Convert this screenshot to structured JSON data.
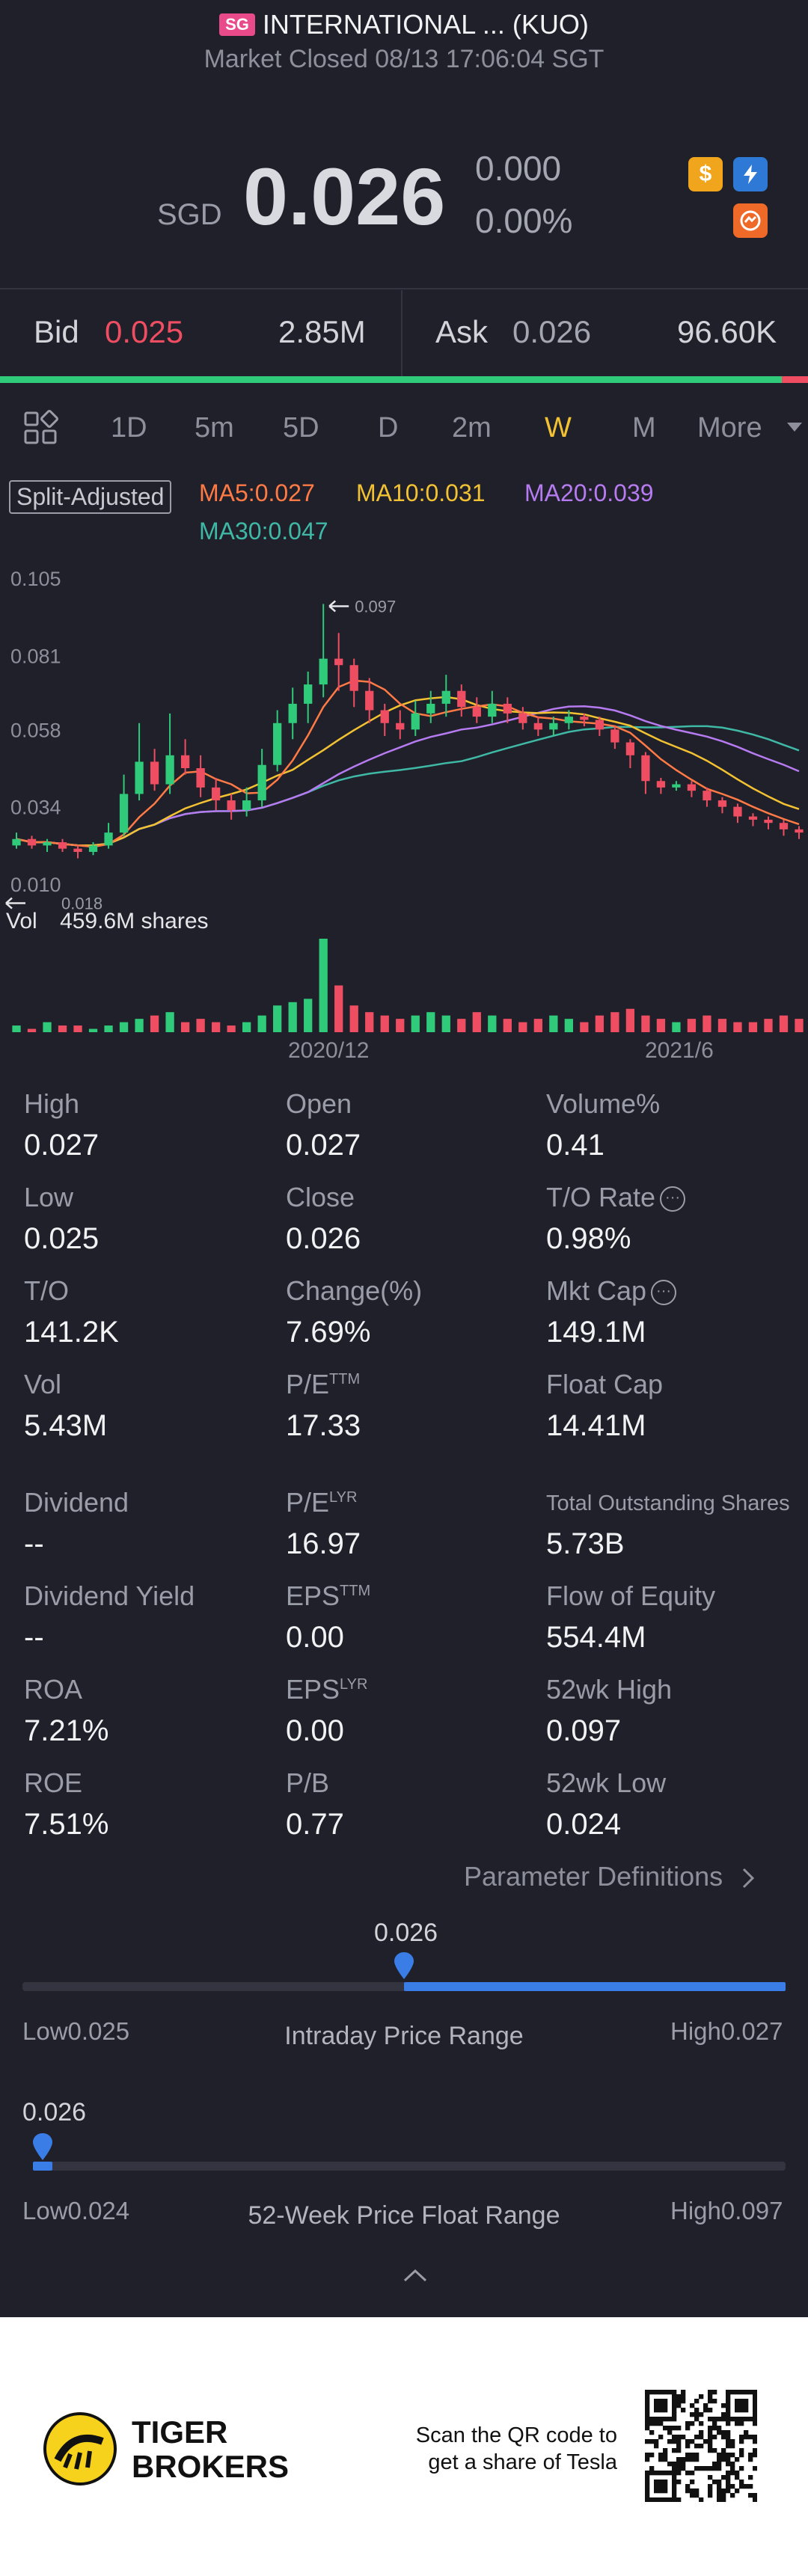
{
  "header": {
    "market_badge": "SG",
    "title": "INTERNATIONAL ... (KUO)",
    "status": "Market Closed 08/13 17:06:04 SGT"
  },
  "quote": {
    "currency": "SGD",
    "price": "0.026",
    "change": "0.000",
    "change_pct": "0.00%"
  },
  "icons": {
    "dollar": "dollar-icon",
    "bolt": "lightning-icon",
    "swap": "swap-icon"
  },
  "book": {
    "bid_label": "Bid",
    "bid_price": "0.025",
    "bid_size": "2.85M",
    "ask_label": "Ask",
    "ask_price": "0.026",
    "ask_size": "96.60K"
  },
  "tabs": [
    "1D",
    "5m",
    "5D",
    "D",
    "2m",
    "W",
    "M",
    "More"
  ],
  "active_tab": "W",
  "indicators": {
    "split": "Split-Adjusted",
    "ma5": "MA5:0.027",
    "ma10": "MA10:0.031",
    "ma20": "MA20:0.039",
    "ma30": "MA30:0.047"
  },
  "chart": {
    "y_ticks": [
      "0.105",
      "0.081",
      "0.058",
      "0.034",
      "0.010"
    ],
    "high_marker": "0.097",
    "low_marker": "0.018",
    "vol_label": "Vol",
    "vol_value": "459.6M shares",
    "x_labels": [
      "2020/12",
      "2021/6"
    ]
  },
  "chart_data": {
    "type": "candlestick",
    "ylim": [
      0.01,
      0.105
    ],
    "y_ticks": [
      0.105,
      0.081,
      0.058,
      0.034,
      0.01
    ],
    "annotations": {
      "high": 0.097,
      "low": 0.018
    },
    "x_labels": [
      "2020/12",
      "2021/6"
    ],
    "candles": [
      [
        0.022,
        0.024,
        0.021,
        0.026
      ],
      [
        0.024,
        0.022,
        0.021,
        0.025
      ],
      [
        0.022,
        0.023,
        0.02,
        0.024
      ],
      [
        0.023,
        0.021,
        0.02,
        0.024
      ],
      [
        0.021,
        0.02,
        0.018,
        0.022
      ],
      [
        0.02,
        0.022,
        0.019,
        0.023
      ],
      [
        0.022,
        0.026,
        0.021,
        0.029
      ],
      [
        0.026,
        0.038,
        0.025,
        0.044
      ],
      [
        0.038,
        0.048,
        0.036,
        0.06
      ],
      [
        0.048,
        0.041,
        0.039,
        0.052
      ],
      [
        0.041,
        0.05,
        0.038,
        0.063
      ],
      [
        0.05,
        0.046,
        0.044,
        0.055
      ],
      [
        0.046,
        0.04,
        0.037,
        0.05
      ],
      [
        0.04,
        0.036,
        0.033,
        0.043
      ],
      [
        0.036,
        0.033,
        0.03,
        0.038
      ],
      [
        0.033,
        0.036,
        0.031,
        0.04
      ],
      [
        0.036,
        0.047,
        0.034,
        0.052
      ],
      [
        0.047,
        0.06,
        0.045,
        0.064
      ],
      [
        0.06,
        0.066,
        0.055,
        0.071
      ],
      [
        0.066,
        0.072,
        0.06,
        0.076
      ],
      [
        0.072,
        0.08,
        0.068,
        0.097
      ],
      [
        0.08,
        0.078,
        0.07,
        0.088
      ],
      [
        0.078,
        0.07,
        0.065,
        0.08
      ],
      [
        0.07,
        0.064,
        0.06,
        0.074
      ],
      [
        0.064,
        0.06,
        0.056,
        0.066
      ],
      [
        0.06,
        0.058,
        0.055,
        0.064
      ],
      [
        0.058,
        0.063,
        0.056,
        0.067
      ],
      [
        0.063,
        0.066,
        0.06,
        0.07
      ],
      [
        0.066,
        0.07,
        0.062,
        0.075
      ],
      [
        0.07,
        0.065,
        0.062,
        0.072
      ],
      [
        0.065,
        0.062,
        0.06,
        0.068
      ],
      [
        0.062,
        0.066,
        0.06,
        0.07
      ],
      [
        0.066,
        0.063,
        0.06,
        0.068
      ],
      [
        0.063,
        0.06,
        0.058,
        0.065
      ],
      [
        0.06,
        0.058,
        0.056,
        0.062
      ],
      [
        0.058,
        0.06,
        0.056,
        0.062
      ],
      [
        0.06,
        0.062,
        0.058,
        0.064
      ],
      [
        0.062,
        0.061,
        0.059,
        0.063
      ],
      [
        0.061,
        0.058,
        0.056,
        0.062
      ],
      [
        0.058,
        0.054,
        0.052,
        0.059
      ],
      [
        0.054,
        0.05,
        0.046,
        0.055
      ],
      [
        0.05,
        0.042,
        0.038,
        0.051
      ],
      [
        0.042,
        0.04,
        0.038,
        0.043
      ],
      [
        0.04,
        0.041,
        0.039,
        0.042
      ],
      [
        0.041,
        0.039,
        0.037,
        0.042
      ],
      [
        0.039,
        0.036,
        0.034,
        0.04
      ],
      [
        0.036,
        0.034,
        0.032,
        0.037
      ],
      [
        0.034,
        0.031,
        0.029,
        0.035
      ],
      [
        0.031,
        0.03,
        0.028,
        0.032
      ],
      [
        0.03,
        0.029,
        0.027,
        0.031
      ],
      [
        0.029,
        0.027,
        0.025,
        0.03
      ],
      [
        0.027,
        0.026,
        0.024,
        0.028
      ]
    ],
    "volume": [
      2,
      1,
      3,
      2,
      2,
      1,
      2,
      3,
      4,
      5,
      6,
      3,
      4,
      3,
      2,
      3,
      5,
      8,
      9,
      10,
      28,
      14,
      8,
      6,
      5,
      4,
      5,
      6,
      5,
      4,
      6,
      5,
      4,
      3,
      4,
      5,
      4,
      3,
      5,
      6,
      7,
      5,
      4,
      3,
      4,
      5,
      4,
      3,
      3,
      4,
      5,
      4
    ]
  },
  "stats": [
    {
      "label": "High",
      "value": "0.027"
    },
    {
      "label": "Open",
      "value": "0.027"
    },
    {
      "label": "Volume%",
      "value": "0.41"
    },
    {
      "label": "Low",
      "value": "0.025"
    },
    {
      "label": "Close",
      "value": "0.026"
    },
    {
      "label": "T/O Rate",
      "value": "0.98%"
    },
    {
      "label": "T/O",
      "value": "141.2K"
    },
    {
      "label": "Change(%)",
      "value": "7.69%"
    },
    {
      "label": "Mkt Cap",
      "value": "149.1M"
    },
    {
      "label": "Vol",
      "value": "5.43M"
    },
    {
      "label": "P/E",
      "sup": "TTM",
      "value": "17.33"
    },
    {
      "label": "Float Cap",
      "value": "14.41M"
    },
    {
      "label": "Dividend",
      "value": "--"
    },
    {
      "label": "P/E",
      "sup": "LYR",
      "value": "16.97"
    },
    {
      "label": "Total Outstanding Shares",
      "value": "5.73B"
    },
    {
      "label": "Dividend Yield",
      "value": "--"
    },
    {
      "label": "EPS",
      "sup": "TTM",
      "value": "0.00"
    },
    {
      "label": "Flow of Equity",
      "value": "554.4M"
    },
    {
      "label": "ROA",
      "value": "7.21%"
    },
    {
      "label": "EPS",
      "sup": "LYR",
      "value": "0.00"
    },
    {
      "label": "52wk High",
      "value": "0.097"
    },
    {
      "label": "ROE",
      "value": "7.51%"
    },
    {
      "label": "P/B",
      "value": "0.77"
    },
    {
      "label": "52wk Low",
      "value": "0.024"
    }
  ],
  "param_def": "Parameter Definitions",
  "intraday": {
    "current": "0.026",
    "low_label": "Low",
    "low": "0.025",
    "title": "Intraday Price Range",
    "high_label": "High",
    "high": "0.027",
    "fraction": 0.5
  },
  "week52": {
    "current": "0.026",
    "low_label": "Low",
    "low": "0.024",
    "title": "52-Week Price Float Range",
    "high_label": "High",
    "high": "0.097",
    "fraction": 0.03
  },
  "footer": {
    "brand_line1": "TIGER",
    "brand_line2": "BROKERS",
    "scan_line1": "Scan the QR code to",
    "scan_line2": "get a share of Tesla"
  }
}
